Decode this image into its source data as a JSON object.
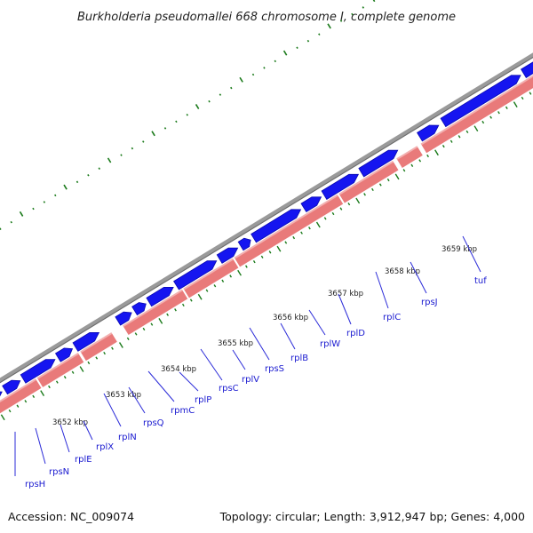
{
  "title": "Burkholderia pseudomallei 668 chromosome I, complete genome",
  "footer": {
    "accession": "Accession: NC_009074",
    "summary": "Topology: circular; Length: 3,912,947 bp; Genes: 4,000"
  },
  "colors": {
    "backbone": "#8a8a8a",
    "gene_forward": "#1515f0",
    "gene_track_pink": "#e97a7a",
    "gc_skew_ticks": "#1a7a1a",
    "label_text": "#1a1ad0",
    "leader_line": "#2b2bd8"
  },
  "tick_labels": [
    "3652 kbp",
    "3653 kbp",
    "3654 kbp",
    "3655 kbp",
    "3656 kbp",
    "3657 kbp",
    "3658 kbp",
    "3659 kbp"
  ],
  "genes": [
    {
      "name": "rpsH"
    },
    {
      "name": "rpsN"
    },
    {
      "name": "rplE"
    },
    {
      "name": "rplX"
    },
    {
      "name": "rplN"
    },
    {
      "name": "rpsQ"
    },
    {
      "name": "rpmC"
    },
    {
      "name": "rplP"
    },
    {
      "name": "rpsC"
    },
    {
      "name": "rplV"
    },
    {
      "name": "rpsS"
    },
    {
      "name": "rplB"
    },
    {
      "name": "rplW"
    },
    {
      "name": "rplD"
    },
    {
      "name": "rplC"
    },
    {
      "name": "rpsJ"
    },
    {
      "name": "tuf"
    }
  ]
}
